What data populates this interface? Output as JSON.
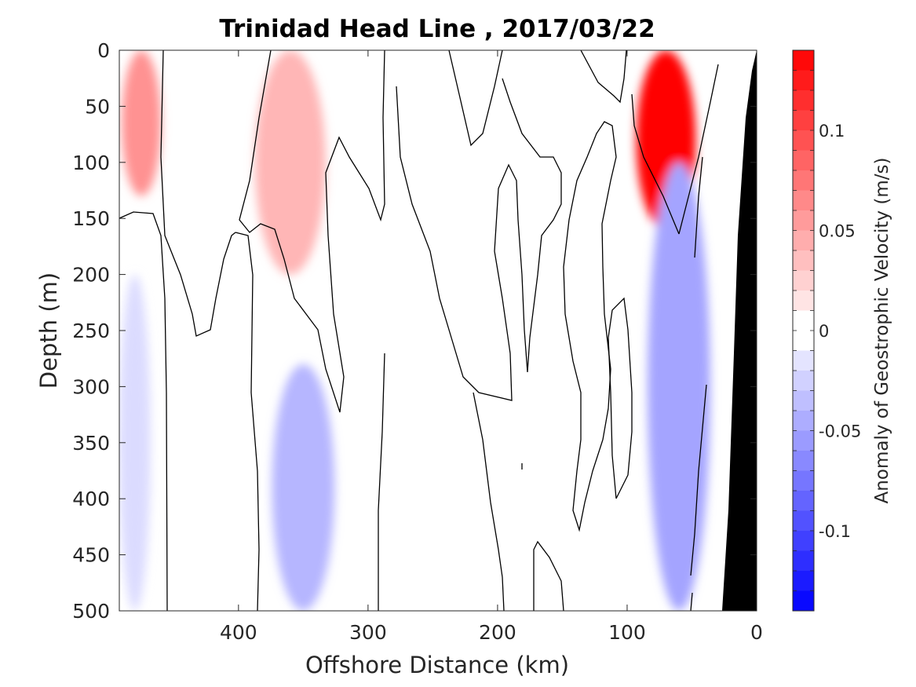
{
  "chart_data": {
    "type": "heatmap",
    "subtype": "filled-contour section",
    "title": "Trinidad Head Line , 2017/03/22",
    "xlabel": "Offshore Distance (km)",
    "ylabel": "Depth (m)",
    "xlim": [
      492,
      0
    ],
    "xdirection": "reversed",
    "ylim": [
      0,
      500
    ],
    "ydirection": "reversed (depth increases downward)",
    "xticks": [
      400,
      300,
      200,
      100,
      0
    ],
    "xtick_labels": [
      "400",
      "300",
      "200",
      "100",
      "0"
    ],
    "yticks": [
      0,
      50,
      100,
      150,
      200,
      250,
      300,
      350,
      400,
      450,
      500
    ],
    "ytick_labels": [
      "0",
      "50",
      "100",
      "150",
      "200",
      "250",
      "300",
      "350",
      "400",
      "450",
      "500"
    ],
    "grid": false,
    "colorbar": {
      "label": "Anomaly of Geostrophic Velocity (m/s)",
      "range": [
        -0.14,
        0.14
      ],
      "level_step": 0.01,
      "ticks": [
        0.1,
        0.05,
        0,
        -0.05,
        -0.1
      ],
      "tick_labels": [
        "0.1",
        "0.05",
        "0",
        "-0.05",
        "-0.1"
      ],
      "positive_color": "#ff0000",
      "negative_color": "#0000ff",
      "zero_color": "#ffffff"
    },
    "bathymetry_color": "#000000",
    "zero_contour_color": "#000000",
    "features": [
      {
        "name": "nearshore surface jet",
        "sign": "positive",
        "x_center_km": 70,
        "depth_range_m": [
          0,
          160
        ],
        "peak_ms": 0.14
      },
      {
        "name": "offshore positive core",
        "sign": "positive",
        "x_center_km": 475,
        "depth_range_m": [
          0,
          130
        ],
        "peak_ms": 0.06
      },
      {
        "name": "mid-section positive core",
        "sign": "positive",
        "x_center_km": 360,
        "depth_range_m": [
          0,
          200
        ],
        "peak_ms": 0.04
      },
      {
        "name": "nearshore negative band",
        "sign": "negative",
        "x_center_km": 60,
        "depth_range_m": [
          100,
          500
        ],
        "peak_ms": -0.05
      },
      {
        "name": "deep negative offshore",
        "sign": "negative",
        "x_center_km": 350,
        "depth_range_m": [
          280,
          500
        ],
        "peak_ms": -0.04
      },
      {
        "name": "western negative",
        "sign": "negative",
        "x_center_km": 480,
        "depth_range_m": [
          200,
          500
        ],
        "peak_ms": -0.02
      }
    ]
  }
}
